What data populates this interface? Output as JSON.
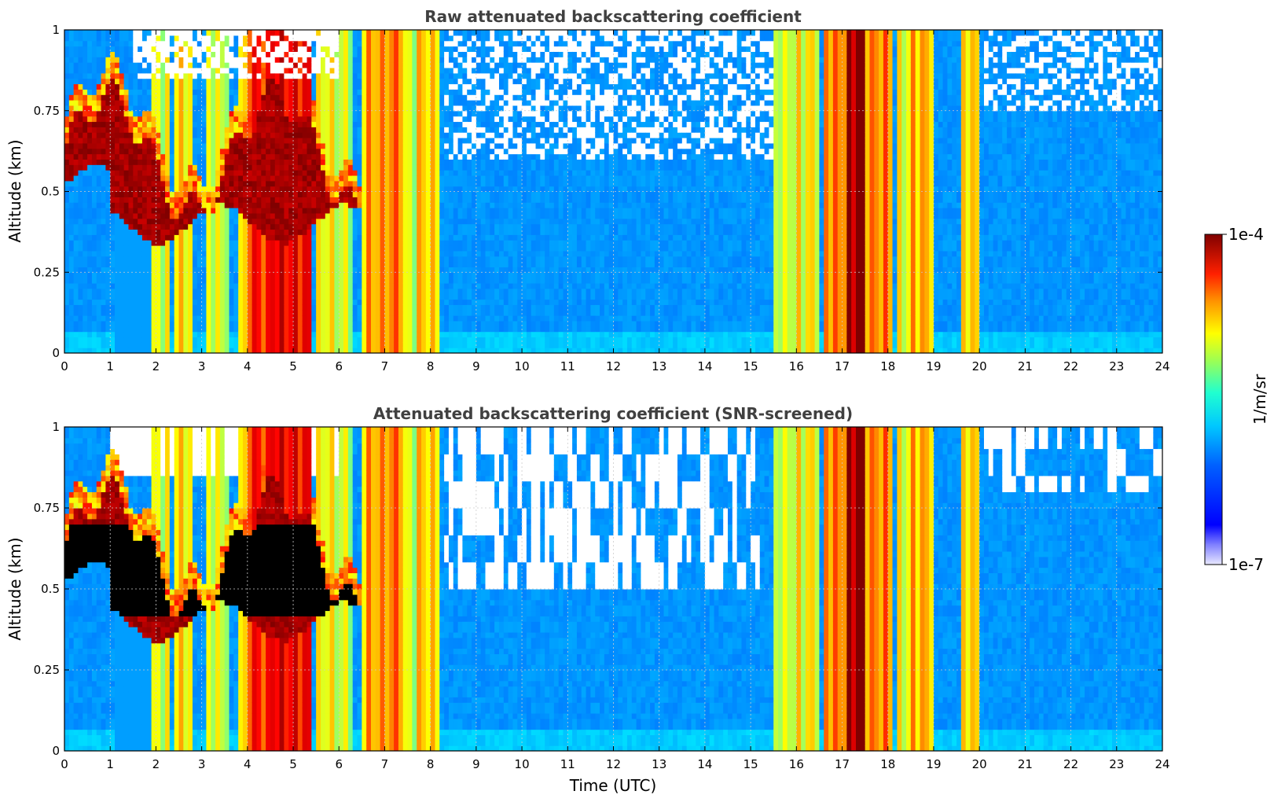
{
  "chart_data": [
    {
      "type": "heatmap",
      "title": "Raw attenuated backscattering coefficient",
      "xlabel": "",
      "ylabel": "Altitude (km)",
      "xlim": [
        0,
        24
      ],
      "ylim": [
        0,
        1
      ],
      "x_ticks": [
        "0",
        "1",
        "2",
        "3",
        "4",
        "5",
        "6",
        "7",
        "8",
        "9",
        "10",
        "11",
        "12",
        "13",
        "14",
        "15",
        "16",
        "17",
        "18",
        "19",
        "20",
        "21",
        "22",
        "23",
        "24"
      ],
      "y_ticks": [
        "0",
        "0.25",
        "0.5",
        "0.75",
        "1"
      ],
      "grid": true,
      "screened": false,
      "features": [
        {
          "label": "aerosol layer",
          "t_start": 0,
          "t_end": 6.5,
          "z_bottom": 0.38,
          "z_top": 0.85
        },
        {
          "label": "cloud columns",
          "t_start": 5.3,
          "t_end": 8.3
        },
        {
          "label": "cloud columns",
          "t_start": 15.5,
          "t_end": 20.1
        },
        {
          "label": "clear air",
          "t_start": 8.3,
          "t_end": 15.5
        }
      ]
    },
    {
      "type": "heatmap",
      "title": "Attenuated backscattering coefficient (SNR-screened)",
      "xlabel": "Time (UTC)",
      "ylabel": "Altitude (km)",
      "xlim": [
        0,
        24
      ],
      "ylim": [
        0,
        1
      ],
      "x_ticks": [
        "0",
        "1",
        "2",
        "3",
        "4",
        "5",
        "6",
        "7",
        "8",
        "9",
        "10",
        "11",
        "12",
        "13",
        "14",
        "15",
        "16",
        "17",
        "18",
        "19",
        "20",
        "21",
        "22",
        "23",
        "24"
      ],
      "y_ticks": [
        "0",
        "0.25",
        "0.5",
        "0.75",
        "1"
      ],
      "grid": true,
      "screened": true,
      "features": [
        {
          "label": "aerosol layer",
          "t_start": 0,
          "t_end": 6.5,
          "z_bottom": 0.38,
          "z_top": 0.85
        },
        {
          "label": "cloud columns",
          "t_start": 5.3,
          "t_end": 8.3
        },
        {
          "label": "cloud columns",
          "t_start": 15.5,
          "t_end": 20.1
        },
        {
          "label": "screened-out region",
          "t_start": 8.3,
          "t_end": 15.2,
          "z_bottom": 0.45,
          "z_top": 1
        }
      ]
    }
  ],
  "colorbar": {
    "min_label": "1e-7",
    "max_label": "1e-4",
    "unit_label": "1/m/sr",
    "colormap": "jet",
    "scale": "log",
    "range": [
      1e-07,
      0.0001
    ]
  },
  "colors": {
    "title": "#404040",
    "jet_low": "#00008f",
    "jet_high": "#800000",
    "low_end": "#e8e8ff"
  }
}
